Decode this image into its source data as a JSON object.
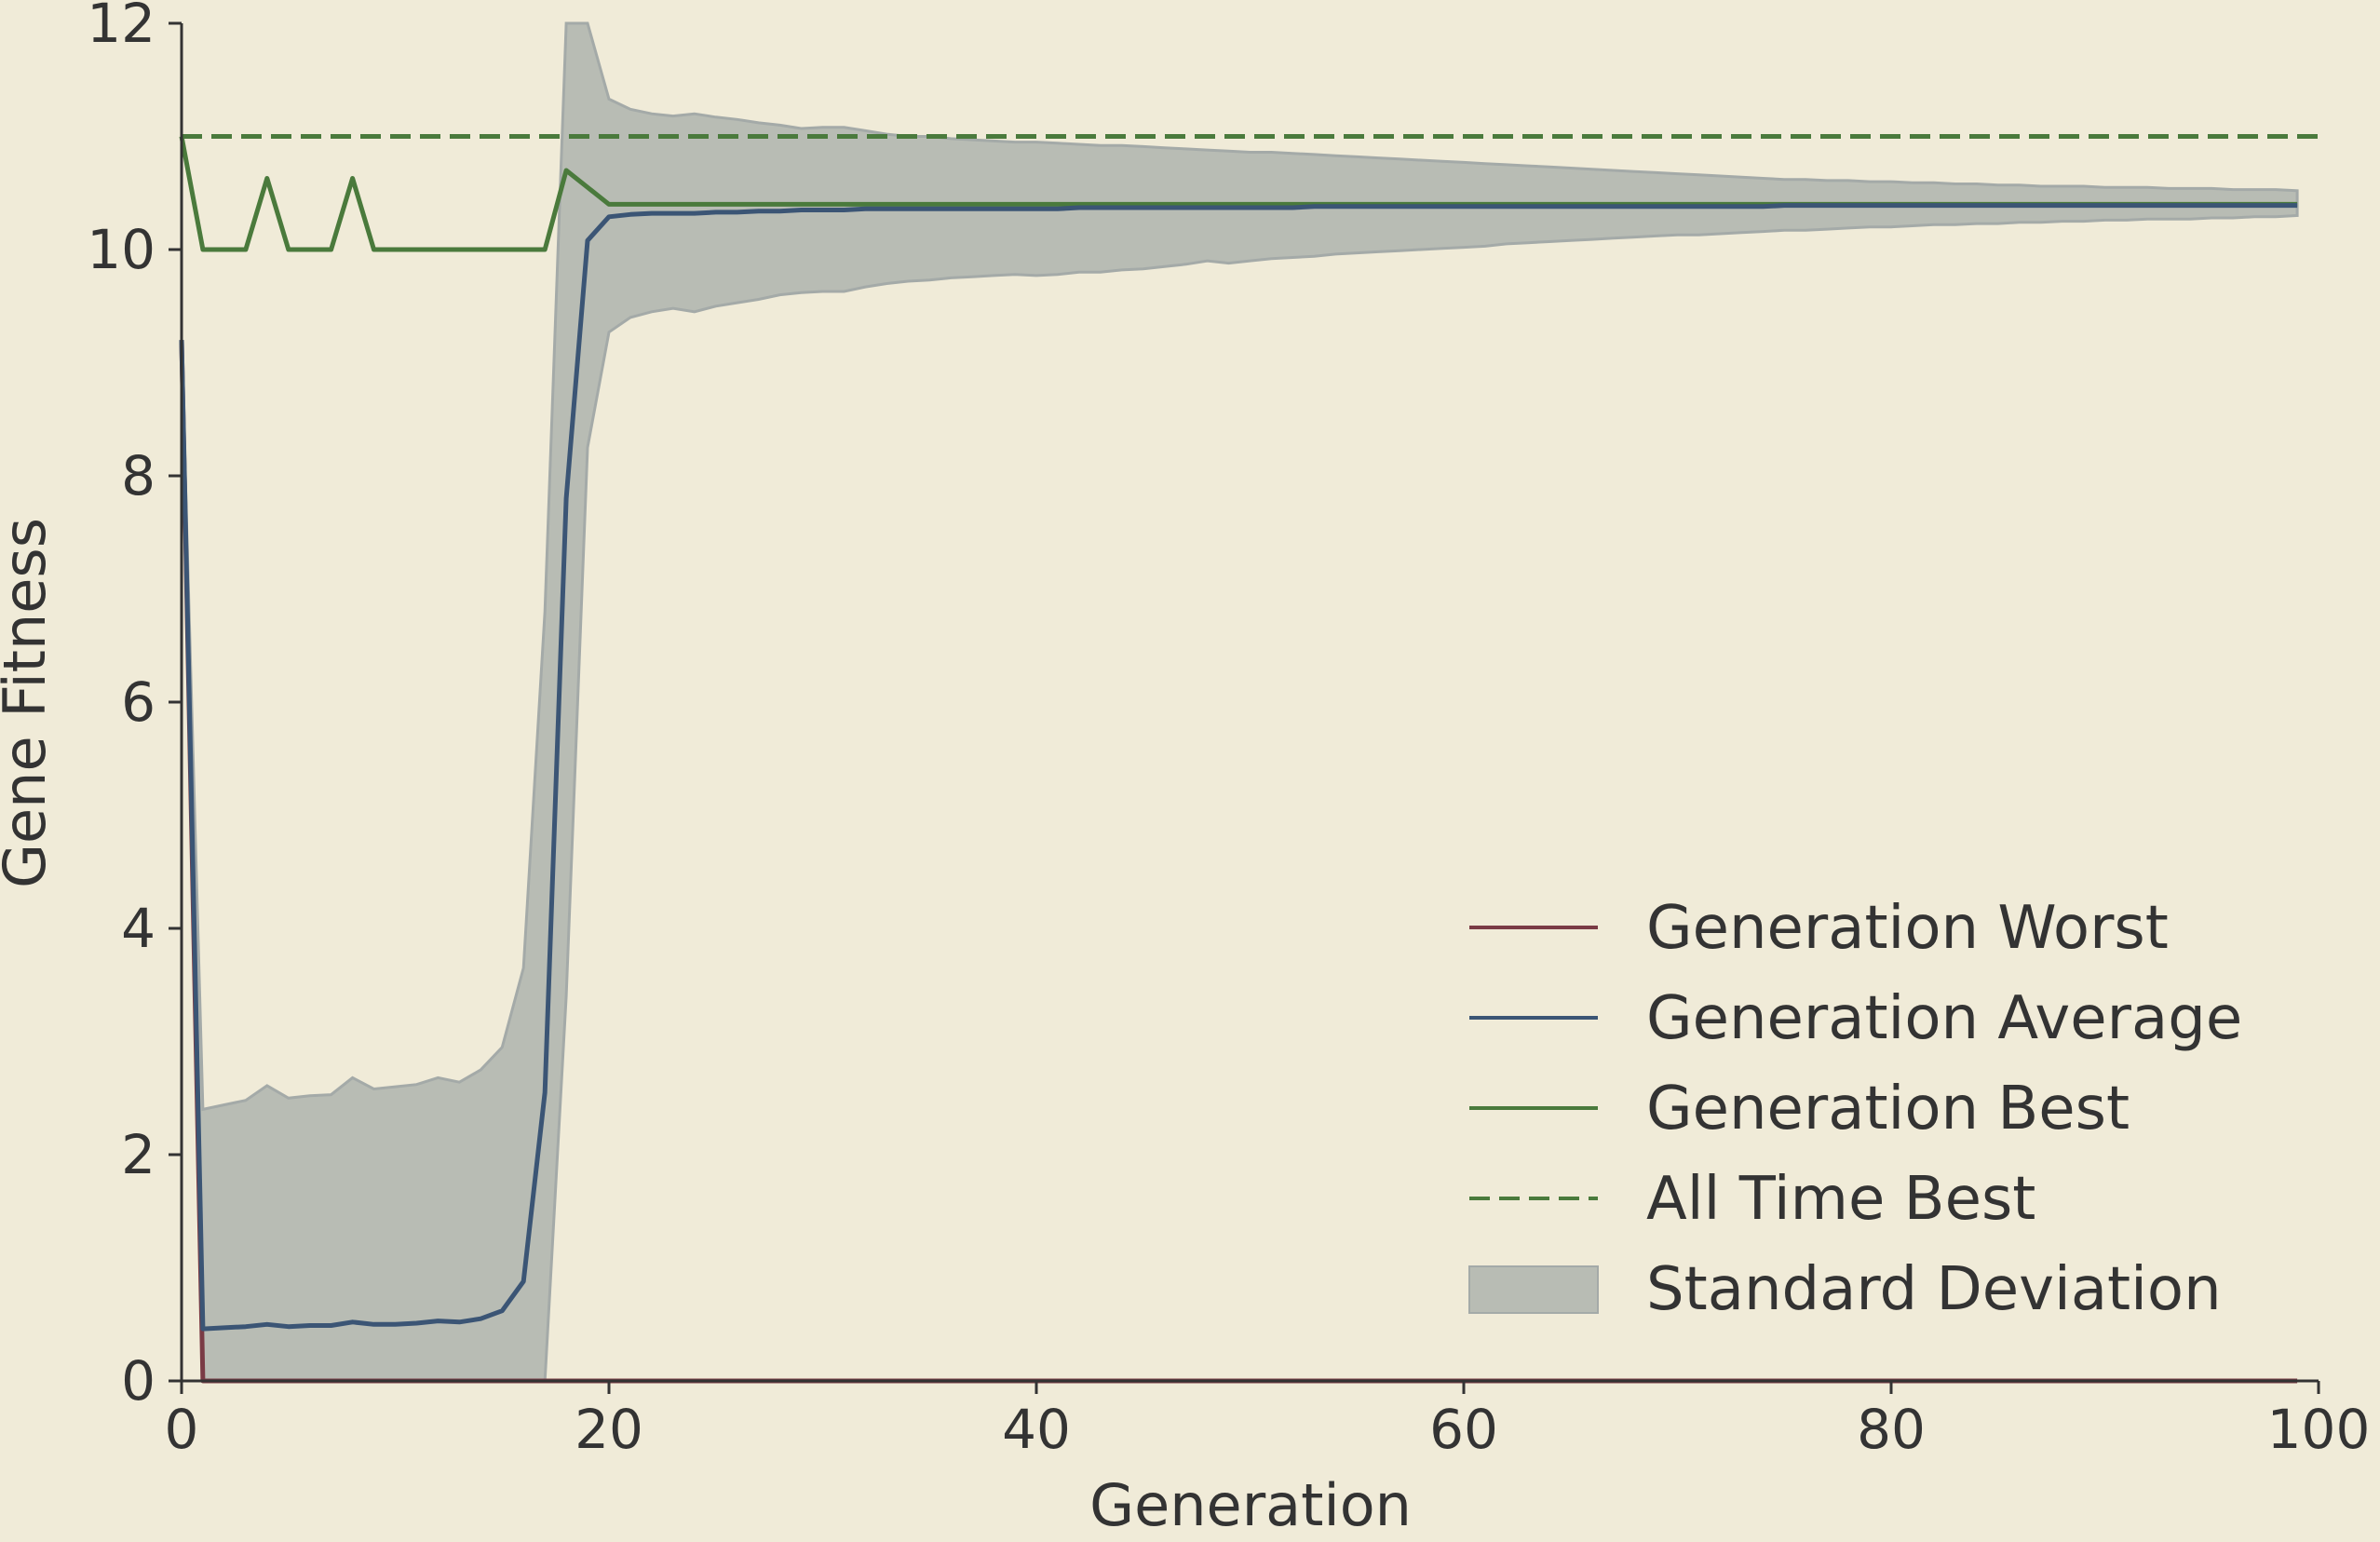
{
  "colors": {
    "background": "#f0ebd8",
    "axis": "#333333",
    "worst": "#7a3b45",
    "average": "#3b5575",
    "best": "#4a7a3c",
    "all_time_best": "#4a7a3c",
    "std_fill": "#b8bcb4",
    "std_edge": "#a4aaa8"
  },
  "chart_data": {
    "type": "line",
    "xlabel": "Generation",
    "ylabel": "Gene Fitness",
    "xlim": [
      0,
      100
    ],
    "ylim": [
      0,
      12
    ],
    "xticks": [
      0,
      20,
      40,
      60,
      80,
      100
    ],
    "yticks": [
      0,
      2,
      4,
      6,
      8,
      10,
      12
    ],
    "grid": false,
    "legend_position": "lower-right",
    "x": [
      0,
      1,
      2,
      3,
      4,
      5,
      6,
      7,
      8,
      9,
      10,
      11,
      12,
      13,
      14,
      15,
      16,
      17,
      18,
      19,
      20,
      21,
      22,
      23,
      24,
      25,
      26,
      27,
      28,
      29,
      30,
      31,
      32,
      33,
      34,
      35,
      36,
      37,
      38,
      39,
      40,
      41,
      42,
      43,
      44,
      45,
      46,
      47,
      48,
      49,
      50,
      51,
      52,
      53,
      54,
      55,
      56,
      57,
      58,
      59,
      60,
      61,
      62,
      63,
      64,
      65,
      66,
      67,
      68,
      69,
      70,
      71,
      72,
      73,
      74,
      75,
      76,
      77,
      78,
      79,
      80,
      81,
      82,
      83,
      84,
      85,
      86,
      87,
      88,
      89,
      90,
      91,
      92,
      93,
      94,
      95,
      96,
      97,
      98,
      99
    ],
    "series": [
      {
        "name": "Generation Worst",
        "style": "solid",
        "color": "#7a3b45",
        "values": [
          9.2,
          0,
          0,
          0,
          0,
          0,
          0,
          0,
          0,
          0,
          0,
          0,
          0,
          0,
          0,
          0,
          0,
          0,
          0,
          0,
          0,
          0,
          0,
          0,
          0,
          0,
          0,
          0,
          0,
          0,
          0,
          0,
          0,
          0,
          0,
          0,
          0,
          0,
          0,
          0,
          0,
          0,
          0,
          0,
          0,
          0,
          0,
          0,
          0,
          0,
          0,
          0,
          0,
          0,
          0,
          0,
          0,
          0,
          0,
          0,
          0,
          0,
          0,
          0,
          0,
          0,
          0,
          0,
          0,
          0,
          0,
          0,
          0,
          0,
          0,
          0,
          0,
          0,
          0,
          0,
          0,
          0,
          0,
          0,
          0,
          0,
          0,
          0,
          0,
          0,
          0,
          0,
          0,
          0,
          0,
          0,
          0,
          0,
          0,
          0
        ]
      },
      {
        "name": "Generation Average",
        "style": "solid",
        "color": "#3b5575",
        "values": [
          9.2,
          0.46,
          0.47,
          0.48,
          0.5,
          0.48,
          0.49,
          0.49,
          0.52,
          0.5,
          0.5,
          0.51,
          0.53,
          0.52,
          0.55,
          0.62,
          0.88,
          2.55,
          7.8,
          10.08,
          10.29,
          10.31,
          10.32,
          10.32,
          10.32,
          10.33,
          10.33,
          10.34,
          10.34,
          10.35,
          10.35,
          10.35,
          10.36,
          10.36,
          10.36,
          10.36,
          10.36,
          10.36,
          10.36,
          10.36,
          10.36,
          10.36,
          10.37,
          10.37,
          10.37,
          10.37,
          10.37,
          10.37,
          10.37,
          10.37,
          10.37,
          10.37,
          10.37,
          10.38,
          10.38,
          10.38,
          10.38,
          10.38,
          10.38,
          10.38,
          10.38,
          10.38,
          10.38,
          10.38,
          10.38,
          10.38,
          10.38,
          10.38,
          10.38,
          10.38,
          10.38,
          10.38,
          10.38,
          10.38,
          10.38,
          10.39,
          10.39,
          10.39,
          10.39,
          10.39,
          10.39,
          10.39,
          10.39,
          10.39,
          10.39,
          10.39,
          10.39,
          10.39,
          10.39,
          10.39,
          10.39,
          10.39,
          10.39,
          10.39,
          10.39,
          10.39,
          10.39,
          10.39,
          10.39,
          10.39
        ]
      },
      {
        "name": "Generation Best",
        "style": "solid",
        "color": "#4a7a3c",
        "values": [
          11,
          10,
          10,
          10,
          10.63,
          10,
          10,
          10,
          10.63,
          10,
          10,
          10,
          10,
          10,
          10,
          10,
          10,
          10,
          10.7,
          10.55,
          10.4,
          10.4,
          10.4,
          10.4,
          10.4,
          10.4,
          10.4,
          10.4,
          10.4,
          10.4,
          10.4,
          10.4,
          10.4,
          10.4,
          10.4,
          10.4,
          10.4,
          10.4,
          10.4,
          10.4,
          10.4,
          10.4,
          10.4,
          10.4,
          10.4,
          10.4,
          10.4,
          10.4,
          10.4,
          10.4,
          10.4,
          10.4,
          10.4,
          10.4,
          10.4,
          10.4,
          10.4,
          10.4,
          10.4,
          10.4,
          10.4,
          10.4,
          10.4,
          10.4,
          10.4,
          10.4,
          10.4,
          10.4,
          10.4,
          10.4,
          10.4,
          10.4,
          10.4,
          10.4,
          10.4,
          10.4,
          10.4,
          10.4,
          10.4,
          10.4,
          10.4,
          10.4,
          10.4,
          10.4,
          10.4,
          10.4,
          10.4,
          10.4,
          10.4,
          10.4,
          10.4,
          10.4,
          10.4,
          10.4,
          10.4,
          10.4,
          10.4,
          10.4,
          10.4,
          10.4
        ]
      },
      {
        "name": "All Time Best",
        "style": "dashed",
        "color": "#4a7a3c",
        "constant": 11
      }
    ],
    "band": {
      "name": "Standard Deviation",
      "upper": [
        9.2,
        2.4,
        2.44,
        2.48,
        2.61,
        2.5,
        2.52,
        2.53,
        2.68,
        2.58,
        2.6,
        2.62,
        2.68,
        2.64,
        2.75,
        2.95,
        3.65,
        6.8,
        12.2,
        12,
        11.33,
        11.24,
        11.2,
        11.18,
        11.2,
        11.17,
        11.15,
        11.12,
        11.1,
        11.07,
        11.08,
        11.08,
        11.05,
        11.02,
        11,
        11,
        10.98,
        10.97,
        10.96,
        10.95,
        10.95,
        10.94,
        10.93,
        10.92,
        10.92,
        10.91,
        10.9,
        10.89,
        10.88,
        10.87,
        10.86,
        10.86,
        10.85,
        10.84,
        10.83,
        10.82,
        10.81,
        10.8,
        10.79,
        10.78,
        10.77,
        10.76,
        10.75,
        10.74,
        10.73,
        10.72,
        10.71,
        10.7,
        10.69,
        10.68,
        10.67,
        10.66,
        10.65,
        10.64,
        10.63,
        10.62,
        10.62,
        10.61,
        10.61,
        10.6,
        10.6,
        10.59,
        10.59,
        10.58,
        10.58,
        10.57,
        10.57,
        10.56,
        10.56,
        10.56,
        10.55,
        10.55,
        10.55,
        10.54,
        10.54,
        10.54,
        10.53,
        10.53,
        10.53,
        10.52
      ],
      "lower": [
        9.2,
        0,
        0,
        0,
        0,
        0,
        0,
        0,
        0,
        0,
        0,
        0,
        0,
        0,
        0,
        0,
        0,
        0,
        3.4,
        8.25,
        9.27,
        9.4,
        9.45,
        9.48,
        9.45,
        9.5,
        9.53,
        9.56,
        9.6,
        9.62,
        9.63,
        9.63,
        9.67,
        9.7,
        9.72,
        9.73,
        9.75,
        9.76,
        9.77,
        9.78,
        9.77,
        9.78,
        9.8,
        9.8,
        9.82,
        9.83,
        9.85,
        9.87,
        9.9,
        9.88,
        9.9,
        9.92,
        9.93,
        9.94,
        9.96,
        9.97,
        9.98,
        9.99,
        10,
        10.01,
        10.02,
        10.03,
        10.05,
        10.06,
        10.07,
        10.08,
        10.09,
        10.1,
        10.11,
        10.12,
        10.13,
        10.13,
        10.14,
        10.15,
        10.16,
        10.17,
        10.17,
        10.18,
        10.19,
        10.2,
        10.2,
        10.21,
        10.22,
        10.22,
        10.23,
        10.23,
        10.24,
        10.24,
        10.25,
        10.25,
        10.26,
        10.26,
        10.27,
        10.27,
        10.27,
        10.28,
        10.28,
        10.29,
        10.29,
        10.3
      ]
    }
  },
  "legend": {
    "items": [
      {
        "label": "Generation Worst"
      },
      {
        "label": "Generation Average"
      },
      {
        "label": "Generation Best"
      },
      {
        "label": "All Time Best"
      },
      {
        "label": "Standard Deviation"
      }
    ]
  }
}
